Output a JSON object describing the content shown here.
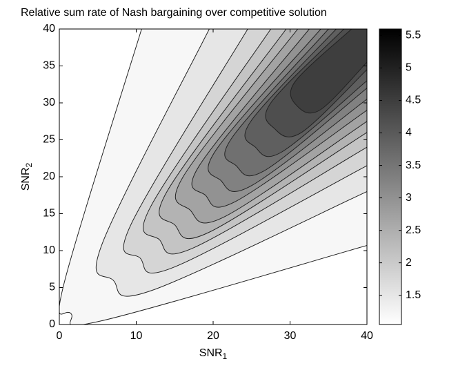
{
  "chart_data": {
    "type": "contour",
    "title": "Relative sum rate of Nash bargaining over competitive solution",
    "x_label": {
      "text": "SNR",
      "subscript": "1"
    },
    "y_label": {
      "text": "SNR",
      "subscript": "2"
    },
    "xlim": [
      0,
      40
    ],
    "ylim": [
      0,
      40
    ],
    "xticks": [
      0,
      10,
      20,
      30,
      40
    ],
    "yticks": [
      0,
      5,
      10,
      15,
      20,
      25,
      30,
      35,
      40
    ],
    "colormap": "gray",
    "clim": [
      1.05,
      5.6
    ],
    "cticks": [
      1.5,
      2,
      2.5,
      3,
      3.5,
      4,
      4.5,
      5,
      5.5
    ],
    "line_color": "#222222",
    "contours": [
      {
        "level": 1.2,
        "x": [
          10.7,
          0.6,
          1.5,
          5.5,
          40
        ],
        "y": [
          40,
          5.5,
          1.5,
          0.5,
          10.7
        ]
      },
      {
        "level": 1.5,
        "x": [
          19.5,
          5.6,
          7,
          12,
          40
        ],
        "y": [
          40,
          11,
          6,
          4.6,
          18
        ]
      },
      {
        "level": 1.8,
        "x": [
          24.5,
          9.3,
          10.5,
          15,
          40
        ],
        "y": [
          40,
          13.5,
          9,
          7.8,
          21.5
        ]
      },
      {
        "level": 2.1,
        "x": [
          27.5,
          11.9,
          13,
          17.5,
          40
        ],
        "y": [
          40,
          16,
          11.5,
          10.4,
          24
        ]
      },
      {
        "level": 2.4,
        "x": [
          29.5,
          14,
          15,
          19.5,
          40
        ],
        "y": [
          40,
          18,
          13.5,
          12.5,
          26
        ]
      },
      {
        "level": 2.7,
        "x": [
          31,
          16.1,
          17,
          21.5,
          40
        ],
        "y": [
          40,
          20,
          15.5,
          14.6,
          27.5
        ]
      },
      {
        "level": 3.0,
        "x": [
          32.5,
          18.2,
          19,
          23,
          40
        ],
        "y": [
          40,
          21.5,
          17.5,
          16.7,
          29
        ]
      },
      {
        "level": 3.3,
        "x": [
          34,
          20.3,
          21,
          25,
          40
        ],
        "y": [
          40,
          23.5,
          19.5,
          18.8,
          30.5
        ]
      },
      {
        "level": 3.6,
        "x": [
          35,
          22.4,
          23,
          26.8,
          40
        ],
        "y": [
          40,
          25.2,
          21.5,
          20.9,
          32
        ]
      },
      {
        "level": 3.9,
        "x": [
          36,
          24.9,
          25.5,
          29,
          40
        ],
        "y": [
          40,
          27.5,
          24,
          23.4,
          33
        ]
      },
      {
        "level": 4.2,
        "x": [
          37,
          27.5,
          28,
          31.5,
          40
        ],
        "y": [
          40,
          30,
          26.5,
          26,
          34.5
        ]
      },
      {
        "level": 4.5,
        "x": [
          38,
          30.6,
          31,
          34,
          40
        ],
        "y": [
          40,
          32.8,
          29.5,
          29.1,
          35.5
        ]
      }
    ]
  }
}
